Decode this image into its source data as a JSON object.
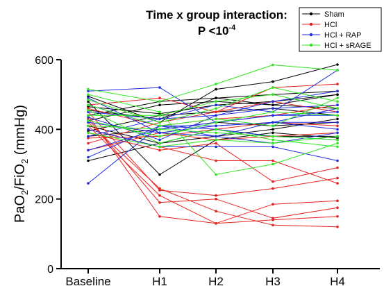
{
  "chart_data": {
    "type": "line",
    "title_line1": "Time x group interaction:",
    "title_line2_prefix": "P <10",
    "title_line2_exponent": "-4",
    "ylabel_parts": [
      "PaO",
      "2",
      "/FiO",
      "2",
      " (mmHg)"
    ],
    "xlabel": "",
    "categories": [
      "Baseline",
      "H1",
      "H2",
      "H3",
      "H4"
    ],
    "ylim": [
      0,
      600
    ],
    "yticks": [
      0,
      200,
      400,
      600
    ],
    "grid": false,
    "legend_position": "top-right",
    "series": [
      {
        "name": "Sham",
        "color": "#000000",
        "subjects": [
          [
            495,
            420,
            515,
            537,
            586
          ],
          [
            480,
            270,
            370,
            390,
            375
          ],
          [
            465,
            445,
            470,
            480,
            500
          ],
          [
            455,
            430,
            490,
            500,
            510
          ],
          [
            440,
            480,
            490,
            470,
            460
          ],
          [
            425,
            470,
            480,
            470,
            500
          ],
          [
            410,
            360,
            380,
            400,
            430
          ],
          [
            395,
            440,
            450,
            460,
            440
          ],
          [
            380,
            400,
            420,
            410,
            420
          ],
          [
            310,
            360,
            400,
            380,
            380
          ]
        ]
      },
      {
        "name": "HCl",
        "color": "#e8211e",
        "subjects": [
          [
            470,
            490,
            450,
            520,
            530
          ],
          [
            460,
            410,
            430,
            440,
            470
          ],
          [
            450,
            225,
            210,
            230,
            260
          ],
          [
            440,
            150,
            130,
            185,
            195
          ],
          [
            430,
            190,
            200,
            145,
            175
          ],
          [
            420,
            230,
            165,
            125,
            120
          ],
          [
            410,
            210,
            130,
            140,
            150
          ],
          [
            400,
            350,
            310,
            310,
            245
          ],
          [
            390,
            340,
            360,
            250,
            290
          ],
          [
            375,
            380,
            400,
            420,
            410
          ],
          [
            360,
            420,
            450,
            480,
            450
          ],
          [
            340,
            390,
            370,
            380,
            390
          ]
        ]
      },
      {
        "name": "HCl + RAP",
        "color": "#1f2de0",
        "subjects": [
          [
            510,
            520,
            420,
            440,
            440
          ],
          [
            490,
            390,
            410,
            420,
            420
          ],
          [
            470,
            410,
            400,
            380,
            370
          ],
          [
            450,
            430,
            440,
            460,
            470
          ],
          [
            435,
            370,
            440,
            480,
            510
          ],
          [
            420,
            390,
            380,
            420,
            400
          ],
          [
            400,
            350,
            350,
            350,
            310
          ],
          [
            380,
            430,
            470,
            450,
            570
          ],
          [
            340,
            400,
            420,
            440,
            450
          ],
          [
            320,
            410,
            380,
            360,
            390
          ],
          [
            245,
            410,
            410,
            420,
            460
          ]
        ]
      },
      {
        "name": "HCl + sRAGE",
        "color": "#2ee81e",
        "subjects": [
          [
            515,
            480,
            530,
            585,
            570
          ],
          [
            500,
            450,
            270,
            300,
            360
          ],
          [
            485,
            420,
            460,
            520,
            480
          ],
          [
            470,
            410,
            430,
            410,
            490
          ],
          [
            455,
            360,
            400,
            370,
            350
          ],
          [
            440,
            440,
            480,
            500,
            460
          ],
          [
            425,
            380,
            420,
            450,
            440
          ],
          [
            410,
            400,
            390,
            380,
            370
          ],
          [
            390,
            350,
            370,
            360,
            380
          ]
        ]
      }
    ]
  }
}
